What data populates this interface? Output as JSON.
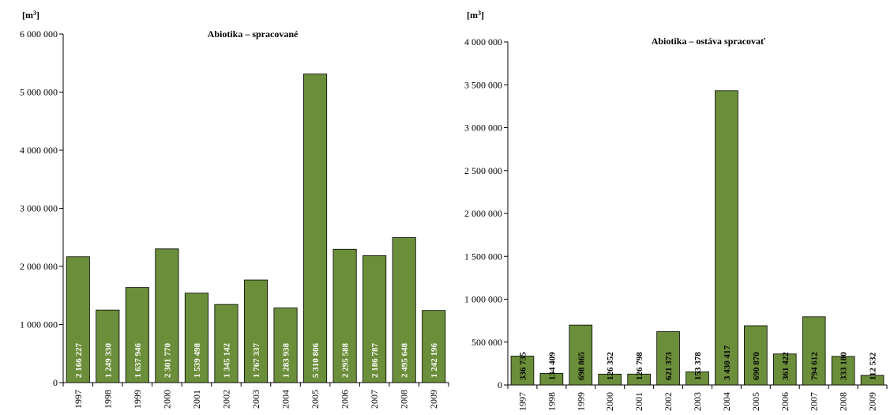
{
  "chart_data": [
    {
      "type": "bar",
      "title": "Abiotika – spracované",
      "unit": "[m3]",
      "categories": [
        "1997",
        "1998",
        "1999",
        "2000",
        "2001",
        "2002",
        "2003",
        "2004",
        "2005",
        "2006",
        "2007",
        "2008",
        "2009"
      ],
      "values": [
        2166227,
        1249330,
        1637946,
        2301770,
        1539498,
        1345142,
        1767337,
        1283938,
        5310806,
        2295588,
        2186787,
        2495648,
        1242196
      ],
      "value_labels": [
        "2 166 227",
        "1 249 330",
        "1 637 946",
        "2 301 770",
        "1 539 498",
        "1 345 142",
        "1 767 337",
        "1 283 938",
        "5 310 806",
        "2 295 588",
        "2 186 787",
        "2 495 648",
        "1 242 196"
      ],
      "ylim": [
        0,
        6000000
      ],
      "yticks": [
        0,
        1000000,
        2000000,
        3000000,
        4000000,
        5000000,
        6000000
      ],
      "ytick_labels": [
        "0",
        "1 000 000",
        "2 000 000",
        "3 000 000",
        "4 000 000",
        "5 000 000",
        "6 000 000"
      ],
      "bar_color": "#6b8e3a",
      "grid": false,
      "legend": "none"
    },
    {
      "type": "bar",
      "title": "Abiotika – ostáva spracovať",
      "unit": "[m3]",
      "categories": [
        "1997",
        "1998",
        "1999",
        "2000",
        "2001",
        "2002",
        "2003",
        "2004",
        "2005",
        "2006",
        "2007",
        "2008",
        "2009"
      ],
      "values": [
        336735,
        134409,
        698865,
        126352,
        126798,
        621373,
        153378,
        3430417,
        690870,
        361422,
        794612,
        333180,
        112532
      ],
      "value_labels": [
        "336 735",
        "134 409",
        "698 865",
        "126 352",
        "126 798",
        "621 373",
        "153 378",
        "3 430 417",
        "690 870",
        "361 422",
        "794 612",
        "333 180",
        "112 532"
      ],
      "ylim": [
        0,
        4000000
      ],
      "yticks": [
        0,
        500000,
        1000000,
        1500000,
        2000000,
        2500000,
        3000000,
        3500000,
        4000000
      ],
      "ytick_labels": [
        "0",
        "500 000",
        "1 000 000",
        "1 500 000",
        "2 000 000",
        "2 500 000",
        "3 000 000",
        "3 500 000",
        "4 000 000"
      ],
      "bar_color": "#6b8e3a",
      "grid": false,
      "legend": "none"
    }
  ]
}
